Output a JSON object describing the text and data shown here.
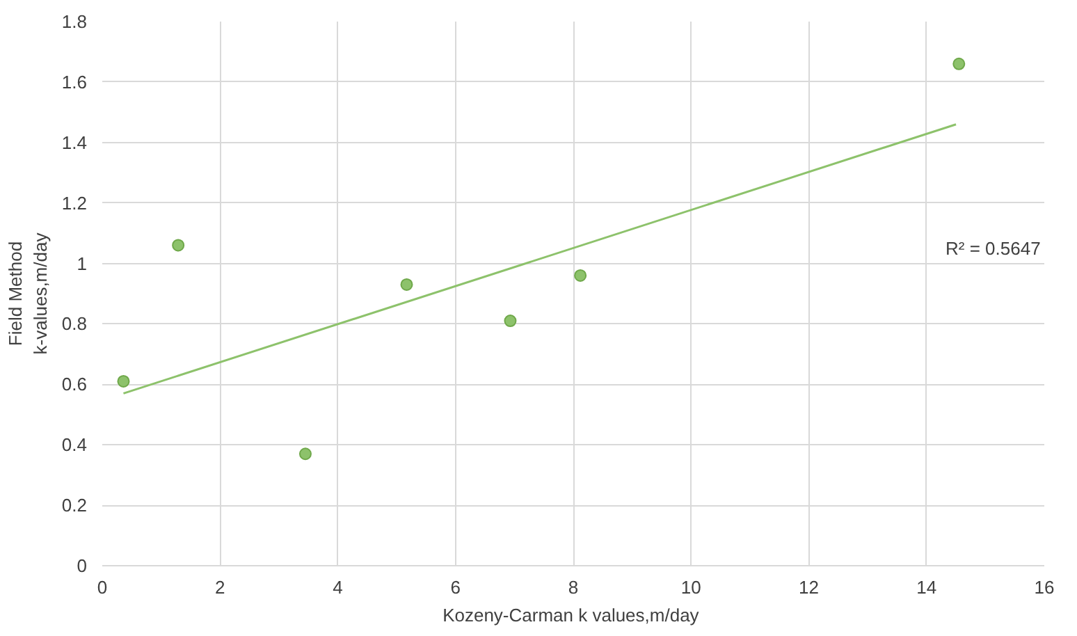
{
  "chart_data": {
    "type": "scatter",
    "xlabel": "Kozeny-Carman  k values,m/day",
    "ylabel": "Field Method\nk-values,m/day",
    "x": [
      0.36,
      1.29,
      3.45,
      5.17,
      6.93,
      8.12,
      14.55
    ],
    "series": [
      {
        "color": "#8dc26b",
        "values": [
          0.61,
          1.06,
          0.37,
          0.93,
          0.81,
          0.96,
          1.66
        ],
        "marker": "circle"
      },
      {
        "type": "line",
        "color": "#8dc26b",
        "x": [
          0.36,
          14.5
        ],
        "values": [
          0.57,
          1.46
        ],
        "marker": "none"
      }
    ],
    "annotations": [
      "R² = 0.5647"
    ],
    "xlim": [
      0,
      16
    ],
    "ylim": [
      0,
      1.8
    ],
    "xticks": [
      0,
      2,
      4,
      6,
      8,
      10,
      12,
      14,
      16
    ],
    "yticks": [
      0,
      {
        "value": 0.2,
        "label": "0.2"
      },
      {
        "value": 0.4,
        "label": "0.4"
      },
      {
        "value": 0.6,
        "label": "0.6"
      },
      {
        "value": 0.8,
        "label": "0.8"
      },
      1,
      {
        "value": 1.2,
        "label": "1.2"
      },
      {
        "value": 1.4,
        "label": "1.4"
      },
      {
        "value": 1.6,
        "label": "1.6"
      },
      {
        "value": 1.8,
        "label": "1.8"
      }
    ],
    "grid": true
  }
}
